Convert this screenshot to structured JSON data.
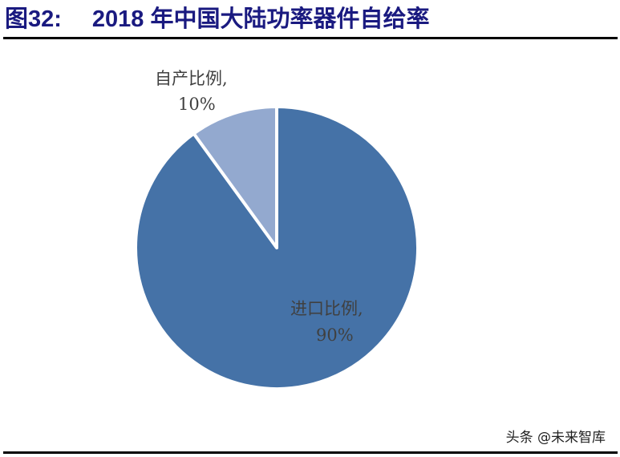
{
  "header": {
    "figure_label": "图32:",
    "title": "2018 年中国大陆功率器件自给率"
  },
  "chart_data": {
    "type": "pie",
    "title": "2018 年中国大陆功率器件自给率",
    "slices": [
      {
        "label": "进口比例",
        "value": 90,
        "display": "90%",
        "color": "#4572a7"
      },
      {
        "label": "自产比例",
        "value": 10,
        "display": "10%",
        "color": "#93a9cf"
      }
    ],
    "start_angle_deg": 0,
    "direction": "clockwise",
    "legend": "none",
    "data_labels": true
  },
  "labels": {
    "import_line1": "进口比例,",
    "import_line2": "90%",
    "self_line1": "自产比例,",
    "self_line2": "10%"
  },
  "watermark": "头条 @未来智库"
}
